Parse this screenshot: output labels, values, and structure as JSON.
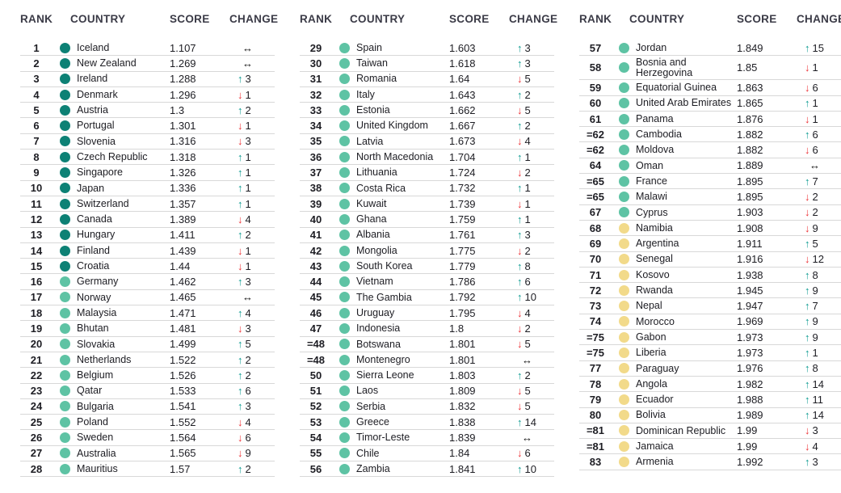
{
  "header": {
    "rank": "RANK",
    "country": "COUNTRY",
    "score": "SCORE",
    "change": "CHANGE"
  },
  "colors": {
    "tier1_dot": "#0d8175",
    "tier2_dot": "#5ec3a4",
    "tier3_dot": "#f2da8a",
    "up_arrow": "#0d9b91",
    "down_arrow": "#ed3338",
    "same_arrow": "#141414",
    "header_text": "#3b3b47",
    "body_text": "#1d1d23",
    "row_divider": "#d8d8d8"
  },
  "icons": {
    "up-arrow": "↑",
    "down-arrow": "↓",
    "same-arrow": "↔"
  },
  "columns": [
    {
      "rows": [
        {
          "rank": "1",
          "country": "Iceland",
          "score": "1.107",
          "tier": 1,
          "dir": "same",
          "delta": ""
        },
        {
          "rank": "2",
          "country": "New Zealand",
          "score": "1.269",
          "tier": 1,
          "dir": "same",
          "delta": ""
        },
        {
          "rank": "3",
          "country": "Ireland",
          "score": "1.288",
          "tier": 1,
          "dir": "up",
          "delta": "3"
        },
        {
          "rank": "4",
          "country": "Denmark",
          "score": "1.296",
          "tier": 1,
          "dir": "down",
          "delta": "1"
        },
        {
          "rank": "5",
          "country": "Austria",
          "score": "1.3",
          "tier": 1,
          "dir": "up",
          "delta": "2"
        },
        {
          "rank": "6",
          "country": "Portugal",
          "score": "1.301",
          "tier": 1,
          "dir": "down",
          "delta": "1"
        },
        {
          "rank": "7",
          "country": "Slovenia",
          "score": "1.316",
          "tier": 1,
          "dir": "down",
          "delta": "3"
        },
        {
          "rank": "8",
          "country": "Czech Republic",
          "score": "1.318",
          "tier": 1,
          "dir": "up",
          "delta": "1"
        },
        {
          "rank": "9",
          "country": "Singapore",
          "score": "1.326",
          "tier": 1,
          "dir": "up",
          "delta": "1"
        },
        {
          "rank": "10",
          "country": "Japan",
          "score": "1.336",
          "tier": 1,
          "dir": "up",
          "delta": "1"
        },
        {
          "rank": "11",
          "country": "Switzerland",
          "score": "1.357",
          "tier": 1,
          "dir": "up",
          "delta": "1"
        },
        {
          "rank": "12",
          "country": "Canada",
          "score": "1.389",
          "tier": 1,
          "dir": "down",
          "delta": "4"
        },
        {
          "rank": "13",
          "country": "Hungary",
          "score": "1.411",
          "tier": 1,
          "dir": "up",
          "delta": "2"
        },
        {
          "rank": "14",
          "country": "Finland",
          "score": "1.439",
          "tier": 1,
          "dir": "down",
          "delta": "1"
        },
        {
          "rank": "15",
          "country": "Croatia",
          "score": "1.44",
          "tier": 1,
          "dir": "down",
          "delta": "1"
        },
        {
          "rank": "16",
          "country": "Germany",
          "score": "1.462",
          "tier": 2,
          "dir": "up",
          "delta": "3"
        },
        {
          "rank": "17",
          "country": "Norway",
          "score": "1.465",
          "tier": 2,
          "dir": "same",
          "delta": ""
        },
        {
          "rank": "18",
          "country": "Malaysia",
          "score": "1.471",
          "tier": 2,
          "dir": "up",
          "delta": "4"
        },
        {
          "rank": "19",
          "country": "Bhutan",
          "score": "1.481",
          "tier": 2,
          "dir": "down",
          "delta": "3"
        },
        {
          "rank": "20",
          "country": "Slovakia",
          "score": "1.499",
          "tier": 2,
          "dir": "up",
          "delta": "5"
        },
        {
          "rank": "21",
          "country": "Netherlands",
          "score": "1.522",
          "tier": 2,
          "dir": "up",
          "delta": "2"
        },
        {
          "rank": "22",
          "country": "Belgium",
          "score": "1.526",
          "tier": 2,
          "dir": "up",
          "delta": "2"
        },
        {
          "rank": "23",
          "country": "Qatar",
          "score": "1.533",
          "tier": 2,
          "dir": "up",
          "delta": "6"
        },
        {
          "rank": "24",
          "country": "Bulgaria",
          "score": "1.541",
          "tier": 2,
          "dir": "up",
          "delta": "3"
        },
        {
          "rank": "25",
          "country": "Poland",
          "score": "1.552",
          "tier": 2,
          "dir": "down",
          "delta": "4"
        },
        {
          "rank": "26",
          "country": "Sweden",
          "score": "1.564",
          "tier": 2,
          "dir": "down",
          "delta": "6"
        },
        {
          "rank": "27",
          "country": "Australia",
          "score": "1.565",
          "tier": 2,
          "dir": "down",
          "delta": "9"
        },
        {
          "rank": "28",
          "country": "Mauritius",
          "score": "1.57",
          "tier": 2,
          "dir": "up",
          "delta": "2"
        }
      ]
    },
    {
      "rows": [
        {
          "rank": "29",
          "country": "Spain",
          "score": "1.603",
          "tier": 2,
          "dir": "up",
          "delta": "3"
        },
        {
          "rank": "30",
          "country": "Taiwan",
          "score": "1.618",
          "tier": 2,
          "dir": "up",
          "delta": "3"
        },
        {
          "rank": "31",
          "country": "Romania",
          "score": "1.64",
          "tier": 2,
          "dir": "down",
          "delta": "5"
        },
        {
          "rank": "32",
          "country": "Italy",
          "score": "1.643",
          "tier": 2,
          "dir": "up",
          "delta": "2"
        },
        {
          "rank": "33",
          "country": "Estonia",
          "score": "1.662",
          "tier": 2,
          "dir": "down",
          "delta": "5"
        },
        {
          "rank": "34",
          "country": "United Kingdom",
          "score": "1.667",
          "tier": 2,
          "dir": "up",
          "delta": "2"
        },
        {
          "rank": "35",
          "country": "Latvia",
          "score": "1.673",
          "tier": 2,
          "dir": "down",
          "delta": "4"
        },
        {
          "rank": "36",
          "country": "North Macedonia",
          "score": "1.704",
          "tier": 2,
          "dir": "up",
          "delta": "1"
        },
        {
          "rank": "37",
          "country": "Lithuania",
          "score": "1.724",
          "tier": 2,
          "dir": "down",
          "delta": "2"
        },
        {
          "rank": "38",
          "country": "Costa Rica",
          "score": "1.732",
          "tier": 2,
          "dir": "up",
          "delta": "1"
        },
        {
          "rank": "39",
          "country": "Kuwait",
          "score": "1.739",
          "tier": 2,
          "dir": "down",
          "delta": "1"
        },
        {
          "rank": "40",
          "country": "Ghana",
          "score": "1.759",
          "tier": 2,
          "dir": "up",
          "delta": "1"
        },
        {
          "rank": "41",
          "country": "Albania",
          "score": "1.761",
          "tier": 2,
          "dir": "up",
          "delta": "3"
        },
        {
          "rank": "42",
          "country": "Mongolia",
          "score": "1.775",
          "tier": 2,
          "dir": "down",
          "delta": "2"
        },
        {
          "rank": "43",
          "country": "South Korea",
          "score": "1.779",
          "tier": 2,
          "dir": "up",
          "delta": "8"
        },
        {
          "rank": "44",
          "country": "Vietnam",
          "score": "1.786",
          "tier": 2,
          "dir": "up",
          "delta": "6"
        },
        {
          "rank": "45",
          "country": "The Gambia",
          "score": "1.792",
          "tier": 2,
          "dir": "up",
          "delta": "10"
        },
        {
          "rank": "46",
          "country": "Uruguay",
          "score": "1.795",
          "tier": 2,
          "dir": "down",
          "delta": "4"
        },
        {
          "rank": "47",
          "country": "Indonesia",
          "score": "1.8",
          "tier": 2,
          "dir": "down",
          "delta": "2"
        },
        {
          "rank": "=48",
          "country": "Botswana",
          "score": "1.801",
          "tier": 2,
          "dir": "down",
          "delta": "5"
        },
        {
          "rank": "=48",
          "country": "Montenegro",
          "score": "1.801",
          "tier": 2,
          "dir": "same",
          "delta": ""
        },
        {
          "rank": "50",
          "country": "Sierra Leone",
          "score": "1.803",
          "tier": 2,
          "dir": "up",
          "delta": "2"
        },
        {
          "rank": "51",
          "country": "Laos",
          "score": "1.809",
          "tier": 2,
          "dir": "down",
          "delta": "5"
        },
        {
          "rank": "52",
          "country": "Serbia",
          "score": "1.832",
          "tier": 2,
          "dir": "down",
          "delta": "5"
        },
        {
          "rank": "53",
          "country": "Greece",
          "score": "1.838",
          "tier": 2,
          "dir": "up",
          "delta": "14"
        },
        {
          "rank": "54",
          "country": "Timor-Leste",
          "score": "1.839",
          "tier": 2,
          "dir": "same",
          "delta": ""
        },
        {
          "rank": "55",
          "country": "Chile",
          "score": "1.84",
          "tier": 2,
          "dir": "down",
          "delta": "6"
        },
        {
          "rank": "56",
          "country": "Zambia",
          "score": "1.841",
          "tier": 2,
          "dir": "up",
          "delta": "10"
        }
      ]
    },
    {
      "rows": [
        {
          "rank": "57",
          "country": "Jordan",
          "score": "1.849",
          "tier": 2,
          "dir": "up",
          "delta": "15"
        },
        {
          "rank": "58",
          "country": "Bosnia and\nHerzegovina",
          "score": "1.85",
          "tier": 2,
          "dir": "down",
          "delta": "1"
        },
        {
          "rank": "59",
          "country": "Equatorial Guinea",
          "score": "1.863",
          "tier": 2,
          "dir": "down",
          "delta": "6"
        },
        {
          "rank": "60",
          "country": "United Arab Emirates",
          "score": "1.865",
          "tier": 2,
          "dir": "up",
          "delta": "1"
        },
        {
          "rank": "61",
          "country": "Panama",
          "score": "1.876",
          "tier": 2,
          "dir": "down",
          "delta": "1"
        },
        {
          "rank": "=62",
          "country": "Cambodia",
          "score": "1.882",
          "tier": 2,
          "dir": "up",
          "delta": "6"
        },
        {
          "rank": "=62",
          "country": "Moldova",
          "score": "1.882",
          "tier": 2,
          "dir": "down",
          "delta": "6"
        },
        {
          "rank": "64",
          "country": "Oman",
          "score": "1.889",
          "tier": 2,
          "dir": "same",
          "delta": ""
        },
        {
          "rank": "=65",
          "country": "France",
          "score": "1.895",
          "tier": 2,
          "dir": "up",
          "delta": "7"
        },
        {
          "rank": "=65",
          "country": "Malawi",
          "score": "1.895",
          "tier": 2,
          "dir": "down",
          "delta": "2"
        },
        {
          "rank": "67",
          "country": "Cyprus",
          "score": "1.903",
          "tier": 2,
          "dir": "down",
          "delta": "2"
        },
        {
          "rank": "68",
          "country": "Namibia",
          "score": "1.908",
          "tier": 3,
          "dir": "down",
          "delta": "9"
        },
        {
          "rank": "69",
          "country": "Argentina",
          "score": "1.911",
          "tier": 3,
          "dir": "up",
          "delta": "5"
        },
        {
          "rank": "70",
          "country": "Senegal",
          "score": "1.916",
          "tier": 3,
          "dir": "down",
          "delta": "12"
        },
        {
          "rank": "71",
          "country": "Kosovo",
          "score": "1.938",
          "tier": 3,
          "dir": "up",
          "delta": "8"
        },
        {
          "rank": "72",
          "country": "Rwanda",
          "score": "1.945",
          "tier": 3,
          "dir": "up",
          "delta": "9"
        },
        {
          "rank": "73",
          "country": "Nepal",
          "score": "1.947",
          "tier": 3,
          "dir": "up",
          "delta": "7"
        },
        {
          "rank": "74",
          "country": "Morocco",
          "score": "1.969",
          "tier": 3,
          "dir": "up",
          "delta": "9"
        },
        {
          "rank": "=75",
          "country": "Gabon",
          "score": "1.973",
          "tier": 3,
          "dir": "up",
          "delta": "9"
        },
        {
          "rank": "=75",
          "country": "Liberia",
          "score": "1.973",
          "tier": 3,
          "dir": "up",
          "delta": "1"
        },
        {
          "rank": "77",
          "country": "Paraguay",
          "score": "1.976",
          "tier": 3,
          "dir": "up",
          "delta": "8"
        },
        {
          "rank": "78",
          "country": "Angola",
          "score": "1.982",
          "tier": 3,
          "dir": "up",
          "delta": "14"
        },
        {
          "rank": "79",
          "country": "Ecuador",
          "score": "1.988",
          "tier": 3,
          "dir": "up",
          "delta": "11"
        },
        {
          "rank": "80",
          "country": "Bolivia",
          "score": "1.989",
          "tier": 3,
          "dir": "up",
          "delta": "14"
        },
        {
          "rank": "=81",
          "country": "Dominican Republic",
          "score": "1.99",
          "tier": 3,
          "dir": "down",
          "delta": "3"
        },
        {
          "rank": "=81",
          "country": "Jamaica",
          "score": "1.99",
          "tier": 3,
          "dir": "down",
          "delta": "4"
        },
        {
          "rank": "83",
          "country": "Armenia",
          "score": "1.992",
          "tier": 3,
          "dir": "up",
          "delta": "3"
        }
      ]
    }
  ]
}
